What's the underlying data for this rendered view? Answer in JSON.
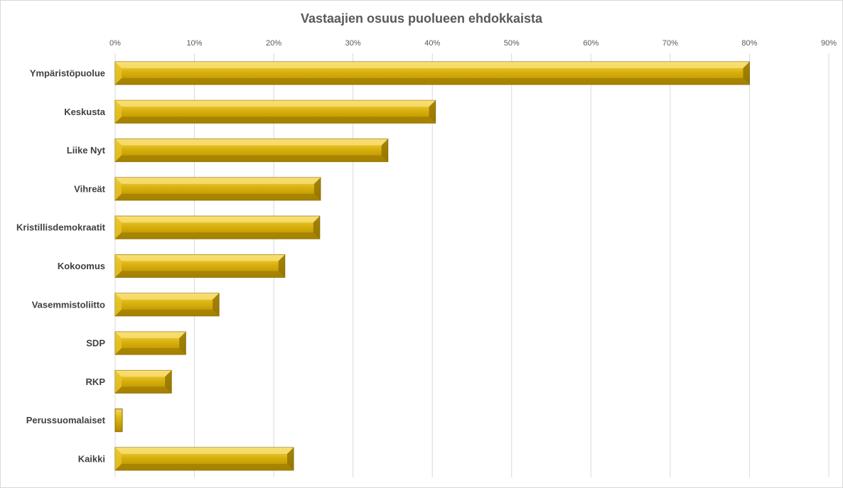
{
  "chart_data": {
    "type": "bar",
    "orientation": "horizontal",
    "title": "Vastaajien osuus puolueen ehdokkaista",
    "xlabel": "",
    "ylabel": "",
    "xlim": [
      0,
      90
    ],
    "tick_values": [
      0,
      10,
      20,
      30,
      40,
      50,
      60,
      70,
      80,
      90
    ],
    "tick_labels": [
      "0%",
      "10%",
      "20%",
      "30%",
      "40%",
      "50%",
      "60%",
      "70%",
      "80%",
      "90%"
    ],
    "axis_position": "top",
    "grid": true,
    "legend": "none",
    "categories": [
      "Ympäristöpuolue",
      "Keskusta",
      "Liike Nyt",
      "Vihreät",
      "Kristillisdemokraatit",
      "Kokoomus",
      "Vasemmistoliitto",
      "SDP",
      "RKP",
      "Perussuomalaiset",
      "Kaikki"
    ],
    "values": [
      80,
      40.4,
      34.4,
      25.9,
      25.8,
      21.4,
      13.1,
      8.9,
      7.1,
      0.9,
      22.5
    ],
    "bar_color": "#c8a000"
  }
}
